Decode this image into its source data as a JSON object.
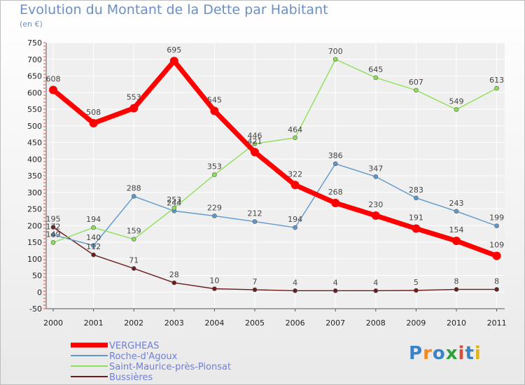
{
  "title": "Evolution du Montant de la Dette par Habitant",
  "subtitle": "(en €)",
  "logo": {
    "text": "Proxiti",
    "colors": [
      "#3a83c8",
      "#f08a1e",
      "#3a83c8",
      "#2e9f3a",
      "#d94b3c",
      "#3a83c8",
      "#e2b21b"
    ]
  },
  "chart_data": {
    "type": "line",
    "title": "Evolution du Montant de la Dette par Habitant",
    "subtitle": "(en €)",
    "xlabel": "",
    "ylabel": "",
    "x": [
      "2000",
      "2001",
      "2002",
      "2003",
      "2004",
      "2005",
      "2006",
      "2007",
      "2008",
      "2009",
      "2010",
      "2011"
    ],
    "ylim": [
      -50,
      750
    ],
    "yticks": [
      -50,
      0,
      50,
      100,
      150,
      200,
      250,
      300,
      350,
      400,
      450,
      500,
      550,
      600,
      650,
      700,
      750
    ],
    "grid": "horizontal",
    "legend_position": "bottom-left",
    "series": [
      {
        "name": "VERGHEAS",
        "color": "#ff0000",
        "values": [
          608,
          508,
          553,
          695,
          545,
          421,
          322,
          268,
          230,
          191,
          154,
          109
        ]
      },
      {
        "name": "Roche-d'Agoux",
        "color": "#5f98cc",
        "values": [
          172,
          140,
          288,
          244,
          229,
          212,
          194,
          386,
          347,
          283,
          243,
          199
        ]
      },
      {
        "name": "Saint-Maurice-près-Pionsat",
        "color": "#8ee05a",
        "values": [
          149,
          194,
          159,
          253,
          353,
          446,
          464,
          700,
          645,
          607,
          549,
          613
        ]
      },
      {
        "name": "Bussières",
        "color": "#6e1c1c",
        "values": [
          195,
          112,
          71,
          28,
          10,
          7,
          4,
          4,
          4,
          5,
          8,
          8
        ]
      }
    ]
  }
}
